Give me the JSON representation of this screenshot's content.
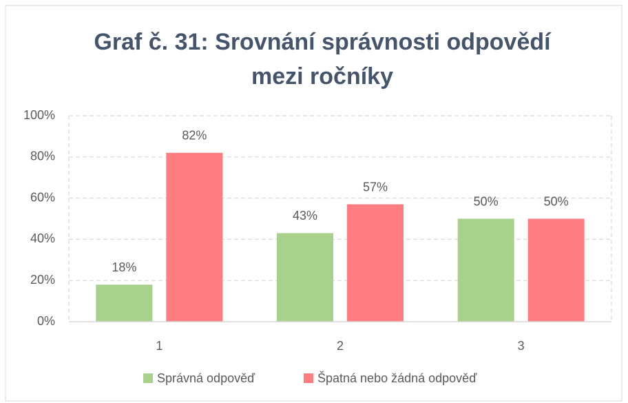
{
  "chart_data": {
    "type": "bar",
    "title": "Graf č. 31: Srovnání správnosti odpovědí mezi ročníky",
    "categories": [
      "1",
      "2",
      "3"
    ],
    "series": [
      {
        "name": "Správná odpověď",
        "color": "#a9d18e",
        "values": [
          18,
          43,
          50
        ],
        "value_labels": [
          "18%",
          "43%",
          "50%"
        ]
      },
      {
        "name": "Špatná nebo žádná odpověď",
        "color": "#ff7c80",
        "values": [
          82,
          57,
          50
        ],
        "value_labels": [
          "82%",
          "57%",
          "50%"
        ]
      }
    ],
    "ylim": [
      0,
      100
    ],
    "yticks": [
      {
        "value": 0,
        "label": "0%"
      },
      {
        "value": 20,
        "label": "20%"
      },
      {
        "value": 40,
        "label": "40%"
      },
      {
        "value": 60,
        "label": "60%"
      },
      {
        "value": 80,
        "label": "80%"
      },
      {
        "value": 100,
        "label": "100%"
      }
    ],
    "grid": true,
    "legend": "bottom"
  }
}
